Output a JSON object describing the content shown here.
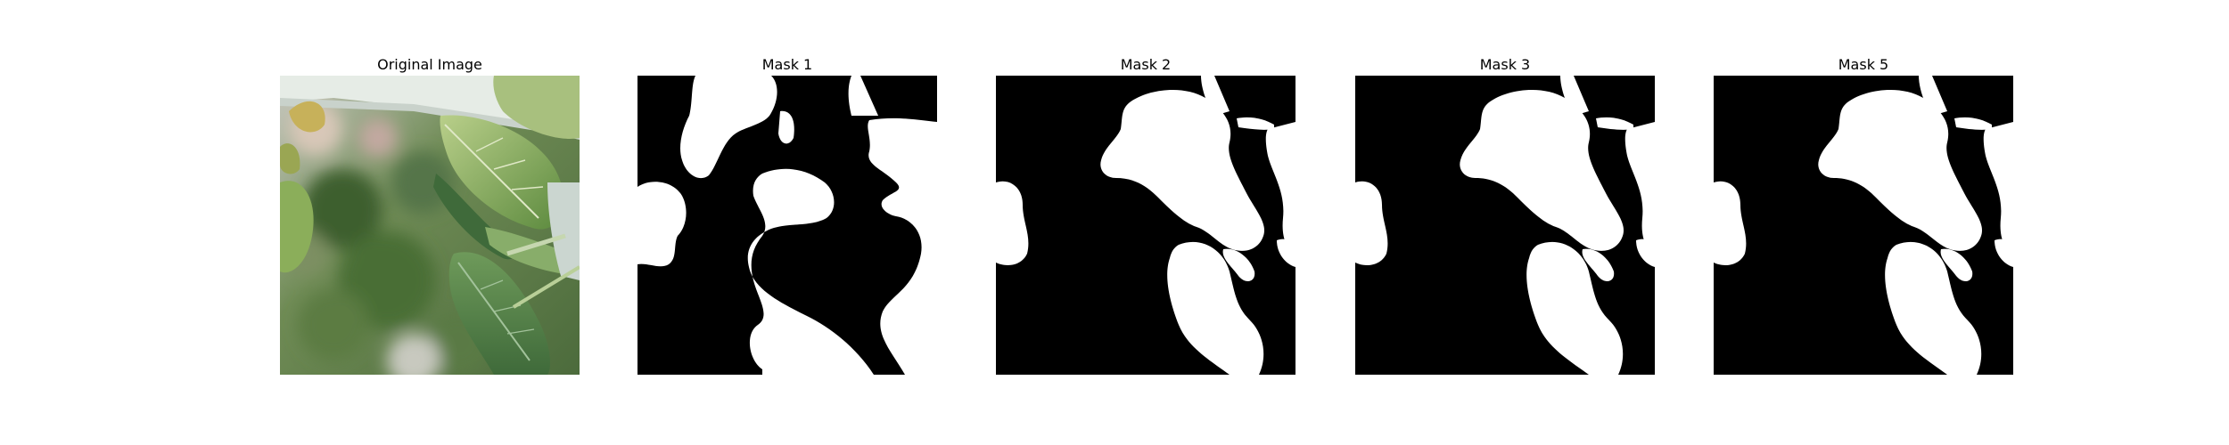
{
  "figure": {
    "panels": [
      {
        "title": "Original Image"
      },
      {
        "title": "Mask 1"
      },
      {
        "title": "Mask 2"
      },
      {
        "title": "Mask 3"
      },
      {
        "title": "Mask 5"
      }
    ]
  },
  "colors": {
    "mask_background": "#000000",
    "mask_foreground": "#ffffff",
    "leaf_dark": "#4f7a3a",
    "leaf_light": "#a9c27c",
    "foliage_blur": "#3f6330"
  }
}
